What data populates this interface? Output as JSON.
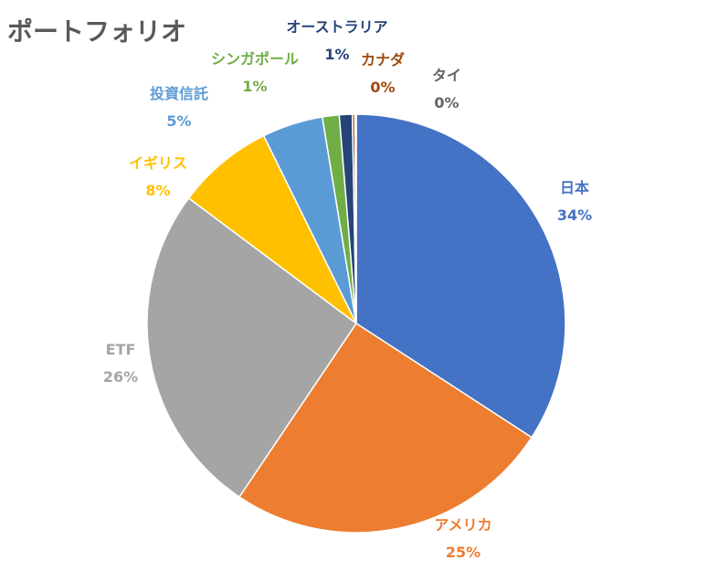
{
  "chart_data": {
    "type": "pie",
    "title": "ポートフォリオ",
    "slices": [
      {
        "name": "日本",
        "label": "34%",
        "value": 34.2,
        "color": "#4472C4"
      },
      {
        "name": "アメリカ",
        "label": "25%",
        "value": 25.3,
        "color": "#ED7D31"
      },
      {
        "name": "ETF",
        "label": "26%",
        "value": 25.8,
        "color": "#A5A5A5"
      },
      {
        "name": "イギリス",
        "label": "8%",
        "value": 7.5,
        "color": "#FFC000"
      },
      {
        "name": "投資信託",
        "label": "5%",
        "value": 4.7,
        "color": "#5B9BD5"
      },
      {
        "name": "シンガポール",
        "label": "1%",
        "value": 1.3,
        "color": "#70AD47"
      },
      {
        "name": "オーストラリア",
        "label": "1%",
        "value": 1.0,
        "color": "#264478"
      },
      {
        "name": "カナダ",
        "label": "0%",
        "value": 0.2,
        "color": "#9E480E"
      },
      {
        "name": "タイ",
        "label": "0%",
        "value": 0.1,
        "color": "#636363"
      }
    ]
  }
}
